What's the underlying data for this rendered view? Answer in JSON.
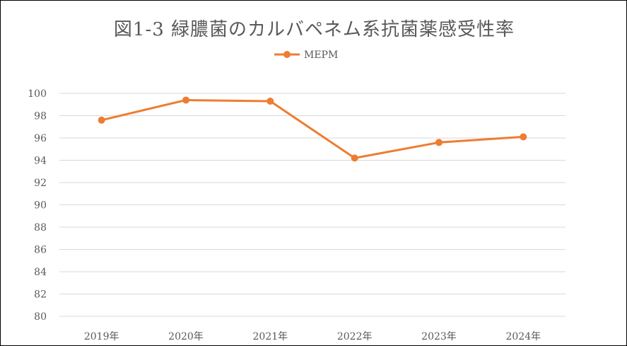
{
  "chart_data": {
    "type": "line",
    "title": "図1-3 緑膿菌のカルバペネム系抗菌薬感受性率",
    "categories": [
      "2019年",
      "2020年",
      "2021年",
      "2022年",
      "2023年",
      "2024年"
    ],
    "series": [
      {
        "name": "MEPM",
        "values": [
          97.6,
          99.4,
          99.3,
          94.2,
          95.6,
          96.1
        ],
        "color": "#ED7D31"
      }
    ],
    "ylim": [
      80,
      100
    ],
    "ystep": 2,
    "yticks": [
      "80",
      "82",
      "84",
      "86",
      "88",
      "90",
      "92",
      "94",
      "96",
      "98",
      "100"
    ],
    "grid": true,
    "legend": "top"
  }
}
